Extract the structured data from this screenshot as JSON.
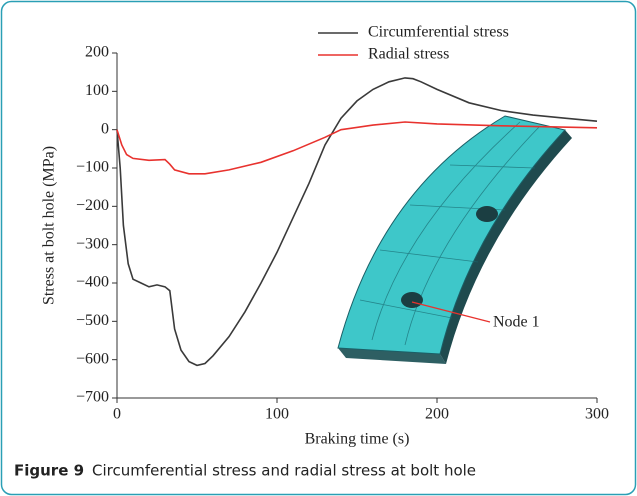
{
  "chart_data": {
    "type": "line",
    "xlabel": "Braking time (s)",
    "ylabel": "Stress at bolt hole (MPa)",
    "xlim": [
      0,
      300
    ],
    "ylim": [
      -700,
      200
    ],
    "xticks": [
      0,
      100,
      200,
      300
    ],
    "yticks": [
      200,
      100,
      0,
      {
        "value": -100,
        "label": "−100"
      },
      {
        "value": -200,
        "label": "−200"
      },
      {
        "value": -300,
        "label": "−300"
      },
      {
        "value": -400,
        "label": "−400"
      },
      {
        "value": -500,
        "label": "−500"
      },
      {
        "value": -600,
        "label": "−600"
      },
      {
        "value": -700,
        "label": "−700"
      }
    ],
    "legend": "upper right",
    "annotations": [
      "Node 1"
    ],
    "series": [
      {
        "name": "Circumferential stress",
        "color": "#3a3a3a",
        "x": [
          0,
          2,
          4,
          7,
          10,
          15,
          20,
          25,
          30,
          33,
          36,
          40,
          45,
          50,
          55,
          60,
          70,
          80,
          90,
          100,
          110,
          120,
          130,
          140,
          150,
          160,
          170,
          180,
          185,
          190,
          200,
          220,
          240,
          260,
          280,
          300
        ],
        "values": [
          0,
          -100,
          -250,
          -350,
          -390,
          -400,
          -410,
          -405,
          -410,
          -420,
          -520,
          -575,
          -605,
          -615,
          -610,
          -590,
          -540,
          -475,
          -400,
          -320,
          -230,
          -140,
          -40,
          30,
          75,
          105,
          125,
          135,
          133,
          125,
          105,
          70,
          50,
          38,
          30,
          22
        ]
      },
      {
        "name": "Radial stress",
        "color": "#e8322e",
        "x": [
          0,
          3,
          6,
          10,
          20,
          30,
          33,
          36,
          45,
          55,
          70,
          90,
          110,
          130,
          140,
          160,
          180,
          200,
          240,
          300
        ],
        "values": [
          0,
          -40,
          -65,
          -75,
          -80,
          -78,
          -90,
          -105,
          -115,
          -115,
          -105,
          -85,
          -55,
          -20,
          0,
          12,
          20,
          15,
          10,
          5
        ]
      }
    ]
  },
  "figure_label": "Figure 9",
  "caption": "Circumferential stress and radial stress at bolt hole"
}
